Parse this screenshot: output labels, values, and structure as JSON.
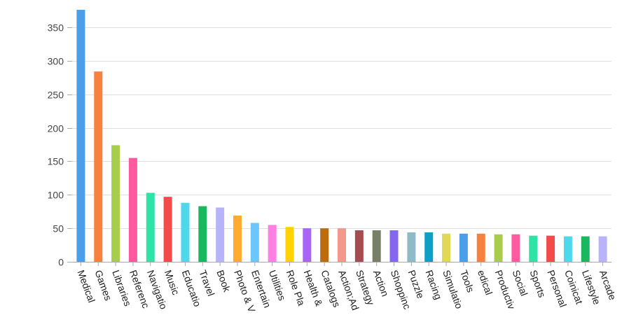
{
  "chart_data": {
    "type": "bar",
    "title": "",
    "xlabel": "",
    "ylabel": "",
    "ylim": [
      0,
      375
    ],
    "yticks": [
      0,
      50,
      100,
      150,
      200,
      250,
      300,
      350
    ],
    "grid": true,
    "legend": "none",
    "categories": [
      "Medical",
      "Games",
      "Libraries",
      "Referenc",
      "Navigatio",
      "Music",
      "Educatio",
      "Travel",
      "Book",
      "Photo & V",
      "Entertain",
      "Utilities",
      "Role Pla",
      "Health &",
      "Catalogs",
      "Action;Ad",
      "Strategy",
      "Action",
      "Shoppinc",
      "Puzzle",
      "Racing",
      "Simulatio",
      "Tools",
      "edical",
      "Productiv",
      "Social",
      "Sports",
      "Personal",
      "Coinicat",
      "Lifestyle",
      "Arcade"
    ],
    "values": [
      376,
      284,
      174,
      155,
      103,
      97,
      88,
      83,
      81,
      69,
      58,
      55,
      52,
      50,
      50,
      50,
      47,
      47,
      47,
      44,
      44,
      42,
      42,
      42,
      41,
      41,
      39,
      39,
      38,
      38,
      38
    ],
    "colors": [
      "#4c9ee8",
      "#f7823f",
      "#a8cd4d",
      "#ff5a9f",
      "#2ee3a5",
      "#f34a4a",
      "#4ed8ec",
      "#1ab75e",
      "#b8b3fb",
      "#ffab2f",
      "#6cc5fb",
      "#ff80e3",
      "#ffd200",
      "#a864f7",
      "#bd6b0f",
      "#f3988b",
      "#a44c50",
      "#778067",
      "#8466f0",
      "#8fbac8",
      "#0e9fc4",
      "#e0d857",
      "#4c9ee8",
      "#f7823f",
      "#a8cd4d",
      "#ff5a9f",
      "#2ee3a5",
      "#f34a4a",
      "#4ed8ec",
      "#1ab75e",
      "#b8b3fb"
    ]
  }
}
